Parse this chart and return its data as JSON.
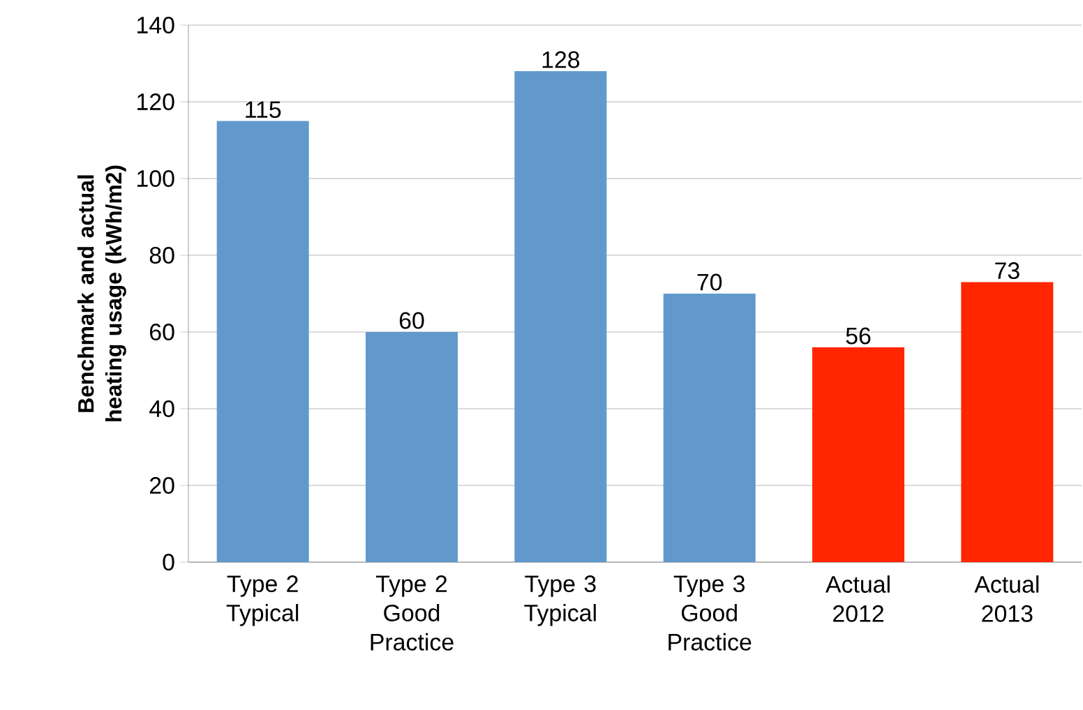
{
  "chart_data": {
    "type": "bar",
    "ylabel": "Benchmark and actual heating usage (kWh/m2)",
    "categories": [
      "Type 2 Typical",
      "Type 2 Good Practice",
      "Type 3 Typical",
      "Type 3 Good Practice",
      "Actual 2012",
      "Actual 2013"
    ],
    "values": [
      115,
      60,
      128,
      70,
      56,
      73
    ],
    "colors": [
      "#6199cc",
      "#6199cc",
      "#6199cc",
      "#6199cc",
      "#ff2600",
      "#ff2600"
    ],
    "ylim": [
      0,
      140
    ],
    "yticks": [
      0,
      20,
      40,
      60,
      80,
      100,
      120,
      140
    ],
    "grid": "y",
    "data_labels": true
  }
}
